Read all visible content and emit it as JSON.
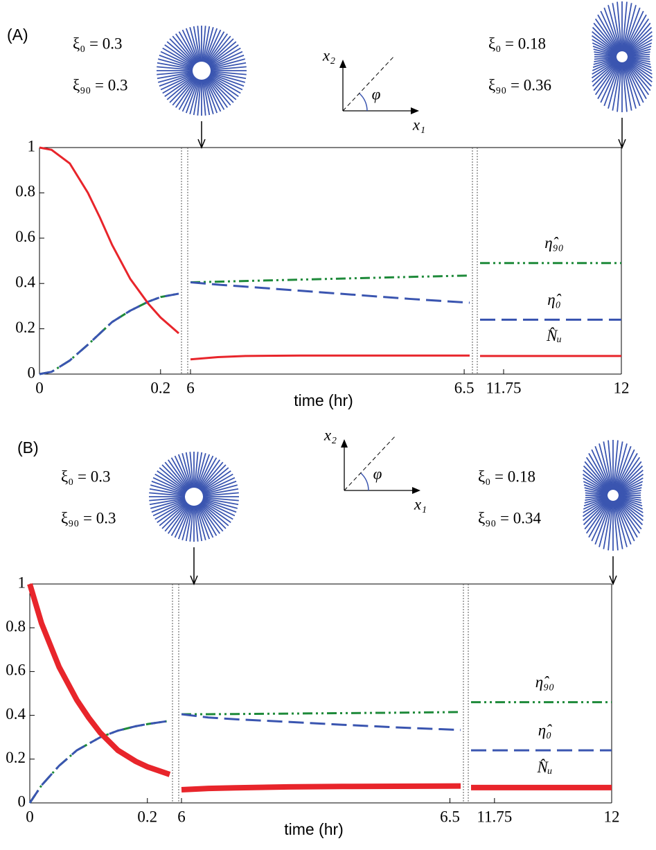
{
  "chart_data": [
    {
      "type": "line",
      "panel_label": "(A)",
      "xlabel": "time (hr)",
      "annotations_left": [
        "ξ₀ = 0.3",
        "ξ₉₀ = 0.3"
      ],
      "annotations_right": [
        "ξ₀ = 0.18",
        "ξ₉₀ = 0.36"
      ],
      "diagram_labels": [
        "x₂",
        "x₁",
        "φ"
      ],
      "ylim": [
        0,
        1
      ],
      "yticks": [
        0,
        0.2,
        0.4,
        0.6,
        0.8,
        1
      ],
      "segments": [
        {
          "xlim": [
            0,
            0.23
          ],
          "xticks": [
            0,
            0.2
          ],
          "x": [
            0,
            0.02,
            0.05,
            0.08,
            0.1,
            0.12,
            0.15,
            0.18,
            0.2,
            0.23
          ]
        },
        {
          "xlim": [
            6,
            6.51
          ],
          "xticks": [
            6,
            6.5
          ],
          "x": [
            6,
            6.05,
            6.1,
            6.2,
            6.3,
            6.4,
            6.51
          ]
        },
        {
          "xlim": [
            11.7,
            12
          ],
          "xticks": [
            11.75,
            12
          ],
          "x": [
            11.7,
            12
          ]
        }
      ],
      "series": [
        {
          "name": "η̂₉₀",
          "color": "#1e8a3a",
          "dash": "dash-dot",
          "width": 3,
          "values": [
            [
              0,
              0.01,
              0.06,
              0.13,
              0.18,
              0.23,
              0.28,
              0.32,
              0.34,
              0.355
            ],
            [
              0.405,
              0.408,
              0.411,
              0.417,
              0.423,
              0.429,
              0.435
            ],
            [
              0.49,
              0.49
            ]
          ]
        },
        {
          "name": "η̂₀",
          "color": "#3a55b0",
          "dash": "dash",
          "width": 3,
          "values": [
            [
              0,
              0.01,
              0.06,
              0.13,
              0.18,
              0.23,
              0.28,
              0.32,
              0.34,
              0.355
            ],
            [
              0.405,
              0.395,
              0.386,
              0.368,
              0.35,
              0.332,
              0.315
            ],
            [
              0.24,
              0.24
            ]
          ]
        },
        {
          "name": "N̂ᵤ",
          "color": "#e8252b",
          "dash": "solid",
          "width": 3,
          "values": [
            [
              1,
              0.99,
              0.93,
              0.8,
              0.69,
              0.57,
              0.42,
              0.31,
              0.25,
              0.18
            ],
            [
              0.065,
              0.075,
              0.08,
              0.082,
              0.082,
              0.082,
              0.082
            ],
            [
              0.08,
              0.08
            ]
          ]
        }
      ]
    },
    {
      "type": "line",
      "panel_label": "(B)",
      "xlabel": "time (hr)",
      "annotations_left": [
        "ξ₀ = 0.3",
        "ξ₉₀ = 0.3"
      ],
      "annotations_right": [
        "ξ₀ = 0.18",
        "ξ₉₀ = 0.34"
      ],
      "diagram_labels": [
        "x₂",
        "x₁",
        "φ"
      ],
      "ylim": [
        0,
        1
      ],
      "yticks": [
        0,
        0.2,
        0.4,
        0.6,
        0.8,
        1
      ],
      "segments": [
        {
          "xlim": [
            0,
            0.238
          ],
          "xticks": [
            0,
            0.2
          ],
          "x": [
            0,
            0.02,
            0.05,
            0.08,
            0.1,
            0.12,
            0.15,
            0.18,
            0.2,
            0.238
          ]
        },
        {
          "xlim": [
            6,
            6.52
          ],
          "xticks": [
            6,
            6.5
          ],
          "x": [
            6,
            6.05,
            6.1,
            6.2,
            6.3,
            6.4,
            6.52
          ]
        },
        {
          "xlim": [
            11.7,
            12
          ],
          "xticks": [
            11.75,
            12
          ],
          "x": [
            11.7,
            12
          ]
        }
      ],
      "series": [
        {
          "name": "η̂₉₀",
          "color": "#1e8a3a",
          "dash": "dash-dot",
          "width": 3,
          "values": [
            [
              0,
              0.08,
              0.17,
              0.24,
              0.27,
              0.3,
              0.33,
              0.35,
              0.36,
              0.375
            ],
            [
              0.405,
              0.405,
              0.406,
              0.408,
              0.41,
              0.412,
              0.415
            ],
            [
              0.46,
              0.46
            ]
          ]
        },
        {
          "name": "η̂₀",
          "color": "#3a55b0",
          "dash": "dash",
          "width": 3,
          "values": [
            [
              0,
              0.08,
              0.17,
              0.24,
              0.27,
              0.3,
              0.33,
              0.35,
              0.36,
              0.375
            ],
            [
              0.405,
              0.39,
              0.382,
              0.37,
              0.357,
              0.345,
              0.333
            ],
            [
              0.24,
              0.24
            ]
          ]
        },
        {
          "name": "N̂ᵤ",
          "color": "#e8252b",
          "dash": "solid",
          "width": 8,
          "values": [
            [
              1,
              0.82,
              0.62,
              0.47,
              0.39,
              0.32,
              0.24,
              0.19,
              0.165,
              0.13
            ],
            [
              0.06,
              0.066,
              0.069,
              0.073,
              0.075,
              0.076,
              0.077
            ],
            [
              0.07,
              0.07
            ]
          ]
        }
      ]
    }
  ]
}
